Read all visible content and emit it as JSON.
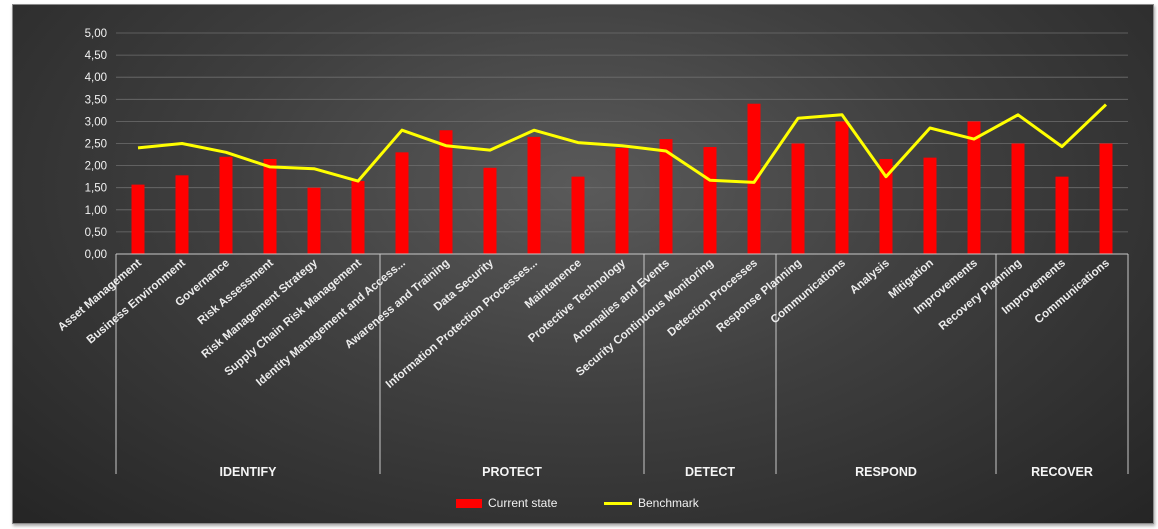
{
  "chart_data": {
    "type": "bar",
    "title": "",
    "ylim": [
      0,
      5
    ],
    "yticks": [
      "0,00",
      "0,50",
      "1,00",
      "1,50",
      "2,00",
      "2,50",
      "3,00",
      "3,50",
      "4,00",
      "4,50",
      "5,00"
    ],
    "grid": true,
    "legend_position": "bottom",
    "categories": [
      "Asset Management",
      "Business Environment",
      "Governance",
      "Risk Assessment",
      "Risk Management Strategy",
      "Supply Chain Risk Management",
      "Identity Management and Access...",
      "Awareness and Training",
      "Data Security",
      "Information Protection Processes...",
      "Maintanence",
      "Protective Technology",
      "Anomalies and Events",
      "Security Continuous Monitoring",
      "Detection Processes",
      "Response Planning",
      "Communications",
      "Analysis",
      "Mitigation",
      "Improvements",
      "Recovery Planning",
      "Improvements",
      "Communications"
    ],
    "groups": [
      {
        "label": "IDENTIFY",
        "count": 6
      },
      {
        "label": "PROTECT",
        "count": 6
      },
      {
        "label": "DETECT",
        "count": 3
      },
      {
        "label": "RESPOND",
        "count": 5
      },
      {
        "label": "RECOVER",
        "count": 3
      }
    ],
    "series": [
      {
        "name": "Current state",
        "type": "bar",
        "color": "#ff0000",
        "values": [
          1.57,
          1.78,
          2.2,
          2.15,
          1.5,
          1.65,
          2.3,
          2.8,
          1.95,
          2.65,
          1.75,
          2.4,
          2.6,
          2.42,
          3.4,
          2.5,
          3.0,
          2.15,
          2.18,
          3.0,
          2.5,
          1.75,
          2.5
        ]
      },
      {
        "name": "Benchmark",
        "type": "line",
        "color": "#ffff00",
        "values": [
          2.4,
          2.5,
          2.3,
          1.97,
          1.93,
          1.65,
          2.8,
          2.45,
          2.35,
          2.8,
          2.52,
          2.45,
          2.33,
          1.67,
          1.62,
          3.07,
          3.15,
          1.75,
          2.85,
          2.6,
          3.15,
          2.43,
          3.38
        ]
      }
    ]
  }
}
